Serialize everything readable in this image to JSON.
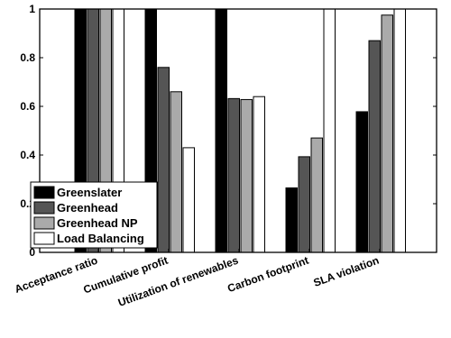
{
  "chart_data": {
    "type": "bar",
    "categories": [
      "Acceptance ratio",
      "Cumulative profit",
      "Utilization of renewables",
      "Carbon footprint",
      "SLA violation"
    ],
    "series": [
      {
        "name": "Greenslater",
        "color": "#000000",
        "values": [
          1.0,
          1.0,
          1.0,
          0.265,
          0.578
        ]
      },
      {
        "name": "Greenhead",
        "color": "#555555",
        "values": [
          1.0,
          0.76,
          0.632,
          0.393,
          0.87
        ]
      },
      {
        "name": "Greenhead NP",
        "color": "#aaaaaa",
        "values": [
          1.0,
          0.66,
          0.628,
          0.47,
          0.975
        ]
      },
      {
        "name": "Load Balancing",
        "color": "#ffffff",
        "values": [
          1.0,
          0.43,
          0.64,
          1.0,
          1.0
        ]
      }
    ],
    "yticks": [
      "0",
      "0.2",
      "0.4",
      "0.6",
      "0.8",
      "1"
    ],
    "ylim": [
      0,
      1
    ],
    "title": "",
    "xlabel": "",
    "ylabel": "",
    "legend_position": "bottom-left",
    "grid": false
  }
}
